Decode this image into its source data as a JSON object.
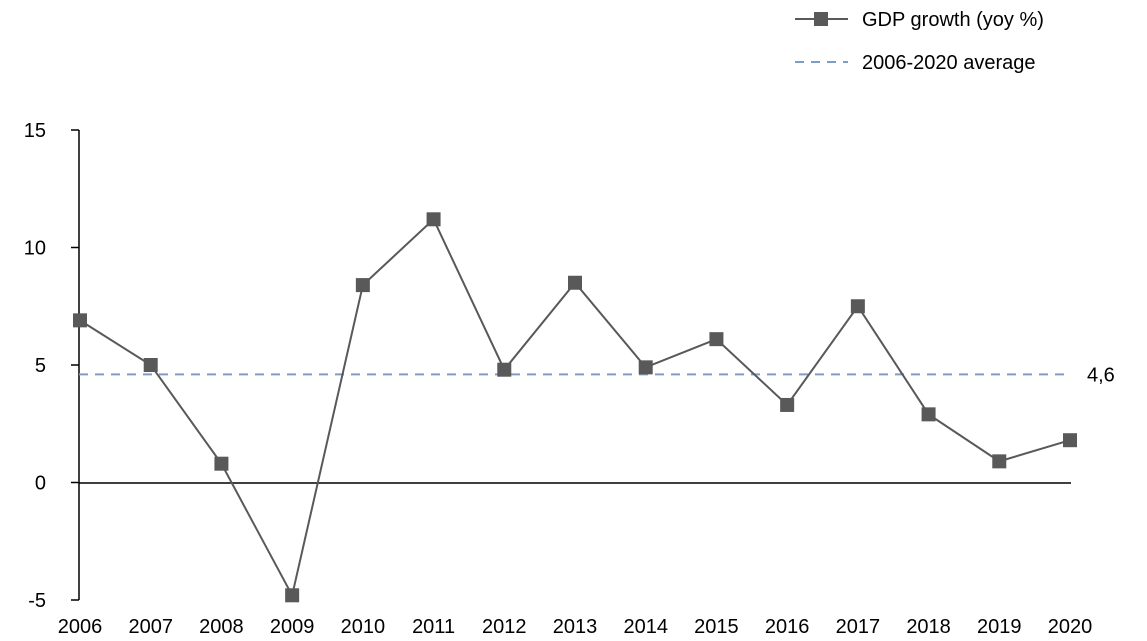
{
  "chart_data": {
    "type": "line",
    "title": "",
    "xlabel": "",
    "ylabel": "",
    "categories": [
      "2006",
      "2007",
      "2008",
      "2009",
      "2010",
      "2011",
      "2012",
      "2013",
      "2014",
      "2015",
      "2016",
      "2017",
      "2018",
      "2019",
      "2020"
    ],
    "ylim": [
      -5,
      15
    ],
    "yticks": [
      -5,
      0,
      5,
      10,
      15
    ],
    "grid": false,
    "legend_position": "top-right",
    "series": [
      {
        "name": "GDP growth (yoy %)",
        "values": [
          6.9,
          5.0,
          0.8,
          -4.8,
          8.4,
          11.2,
          4.8,
          8.5,
          4.9,
          6.1,
          3.3,
          7.5,
          2.9,
          0.9,
          1.8
        ],
        "color": "#595959",
        "marker": "square",
        "line_style": "solid"
      }
    ],
    "reference_lines": [
      {
        "name": "2006-2020 average",
        "value": 4.6,
        "label": "4,6",
        "color": "#7f9cc8",
        "line_style": "dashed"
      }
    ]
  }
}
